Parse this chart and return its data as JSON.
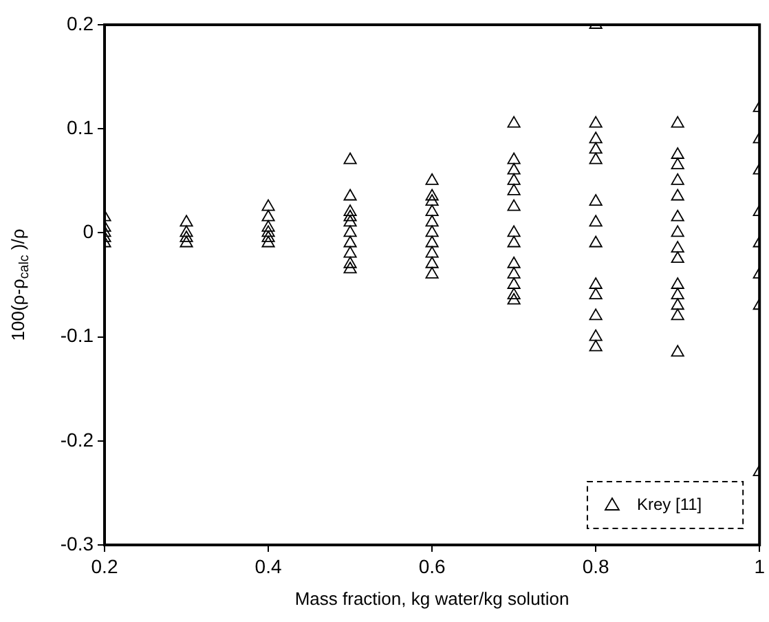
{
  "chart_data": {
    "type": "scatter",
    "xlabel": "Mass fraction, kg water/kg solution",
    "ylabel": "100(ρ-ρ$_{calc}$ )/ρ",
    "xlim": [
      0.2,
      1
    ],
    "xticks": [
      0.2,
      0.4,
      0.6,
      0.8,
      1
    ],
    "ylim": [
      -0.3,
      0.2
    ],
    "yticks": [
      -0.3,
      -0.2,
      -0.1,
      0,
      0.1,
      0.2
    ],
    "grid": false,
    "legend": "bottom right",
    "marker": "triangle",
    "series": [
      {
        "name": "Krey [11]",
        "color": "#000000",
        "x": [
          0.2,
          0.2,
          0.2,
          0.2,
          0.2,
          0.3,
          0.3,
          0.3,
          0.3,
          0.4,
          0.4,
          0.4,
          0.4,
          0.4,
          0.4,
          0.5,
          0.5,
          0.5,
          0.5,
          0.5,
          0.5,
          0.5,
          0.5,
          0.5,
          0.5,
          0.6,
          0.6,
          0.6,
          0.6,
          0.6,
          0.6,
          0.6,
          0.6,
          0.6,
          0.6,
          0.7,
          0.7,
          0.7,
          0.7,
          0.7,
          0.7,
          0.7,
          0.7,
          0.7,
          0.7,
          0.7,
          0.7,
          0.7,
          0.8,
          0.8,
          0.8,
          0.8,
          0.8,
          0.8,
          0.8,
          0.8,
          0.8,
          0.8,
          0.8,
          0.8,
          0.8,
          0.9,
          0.9,
          0.9,
          0.9,
          0.9,
          0.9,
          0.9,
          0.9,
          0.9,
          0.9,
          0.9,
          0.9,
          0.9,
          0.9,
          1,
          1,
          1,
          1,
          1,
          1,
          1,
          1
        ],
        "values": [
          0.015,
          0.005,
          0,
          -0.005,
          -0.01,
          0.01,
          0,
          -0.005,
          -0.01,
          0.025,
          0.015,
          0.005,
          0,
          -0.005,
          -0.01,
          0.07,
          0.035,
          0.02,
          0.015,
          0.01,
          0,
          -0.01,
          -0.02,
          -0.03,
          -0.035,
          0.05,
          0.035,
          0.03,
          0.02,
          0.01,
          0,
          -0.01,
          -0.02,
          -0.03,
          -0.04,
          0.105,
          0.07,
          0.06,
          0.05,
          0.04,
          0.025,
          0,
          -0.01,
          -0.03,
          -0.04,
          -0.05,
          -0.06,
          -0.065,
          0.2,
          0.105,
          0.09,
          0.08,
          0.07,
          0.03,
          0.01,
          -0.01,
          -0.05,
          -0.06,
          -0.08,
          -0.1,
          -0.11,
          0.105,
          0.075,
          0.065,
          0.05,
          0.035,
          0.015,
          0,
          -0.015,
          -0.025,
          -0.05,
          -0.06,
          -0.07,
          -0.08,
          -0.115,
          0.12,
          0.09,
          0.06,
          0.02,
          -0.01,
          -0.04,
          -0.07,
          -0.23
        ]
      }
    ]
  }
}
